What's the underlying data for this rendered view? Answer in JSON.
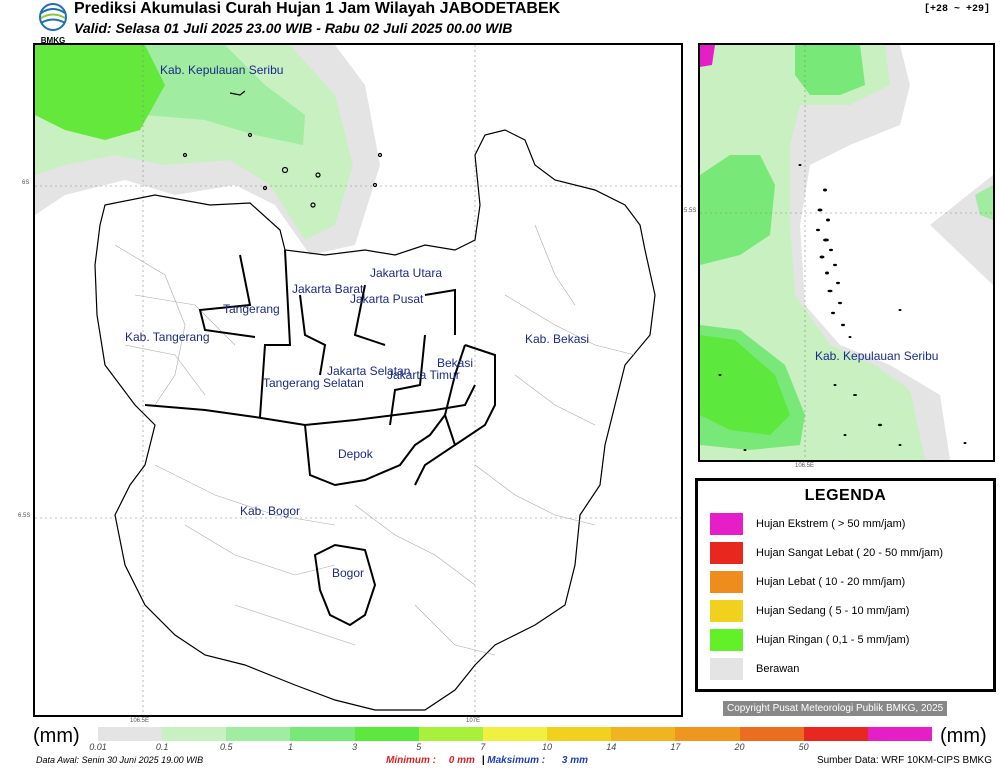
{
  "header": {
    "logo_text": "BMKG",
    "title": "Prediksi Akumulasi Curah Hujan 1 Jam Wilayah JABODETABEK",
    "valid": "Valid: Selasa 01 Juli 2025 23.00 WIB - Rabu 02 Juli 2025 00.00 WIB",
    "offset": "[+28 ~ +29]"
  },
  "main_map": {
    "lat_labels": [
      "6S",
      "6.5S"
    ],
    "lon_labels": [
      "106.5E",
      "107E"
    ],
    "regions": [
      "Kab. Kepulauan Seribu",
      "Jakarta Utara",
      "Jakarta Barat",
      "Jakarta Pusat",
      "Tangerang",
      "Kab. Tangerang",
      "Jakarta Selatan",
      "Jakarta Timur",
      "Bekasi",
      "Kab. Bekasi",
      "Tangerang Selatan",
      "Depok",
      "Kab. Bogor",
      "Bogor"
    ]
  },
  "inset_map": {
    "lat_label": "5.5S",
    "lon_label": "106.5E",
    "region": "Kab. Kepulauan Seribu"
  },
  "legend": {
    "title": "LEGENDA",
    "items": [
      {
        "label": "Hujan Ekstrem ( > 50 mm/jam)",
        "color": "#e61ec8"
      },
      {
        "label": "Hujan Sangat Lebat ( 20 - 50 mm/jam)",
        "color": "#e8281e"
      },
      {
        "label": "Hujan Lebat ( 10 - 20 mm/jam)",
        "color": "#ee8c1e"
      },
      {
        "label": "Hujan Sedang ( 5 - 10 mm/jam)",
        "color": "#f0d21e"
      },
      {
        "label": "Hujan Ringan ( 0,1 - 5 mm/jam)",
        "color": "#64f028"
      },
      {
        "label": "Berawan",
        "color": "#e4e4e4"
      }
    ]
  },
  "copyright": "Copyright Pusat Meteorologi Publik BMKG, 2025",
  "colorbar": {
    "unit": "(mm)",
    "labels": [
      "0.01",
      "0.1",
      "0.5",
      "1",
      "3",
      "5",
      "7",
      "10",
      "14",
      "17",
      "20",
      "50"
    ],
    "colors": [
      "#e4e4e4",
      "#c8f0c0",
      "#a0eca0",
      "#78e878",
      "#5ce83c",
      "#a8f03c",
      "#f0f040",
      "#f0d21e",
      "#f0b41e",
      "#ee961e",
      "#ea6e1e",
      "#e8281e",
      "#e61ec8"
    ]
  },
  "footer": {
    "data_awal": "Data Awal: Senin 30 Juni 2025 19.00 WIB",
    "minimum_label": "Minimum :",
    "minimum_value": "0 mm",
    "separator": "|",
    "maximum_label": "Maksimum :",
    "maximum_value": "3 mm",
    "source": "Sumber Data: WRF 10KM-CIPS BMKG"
  }
}
